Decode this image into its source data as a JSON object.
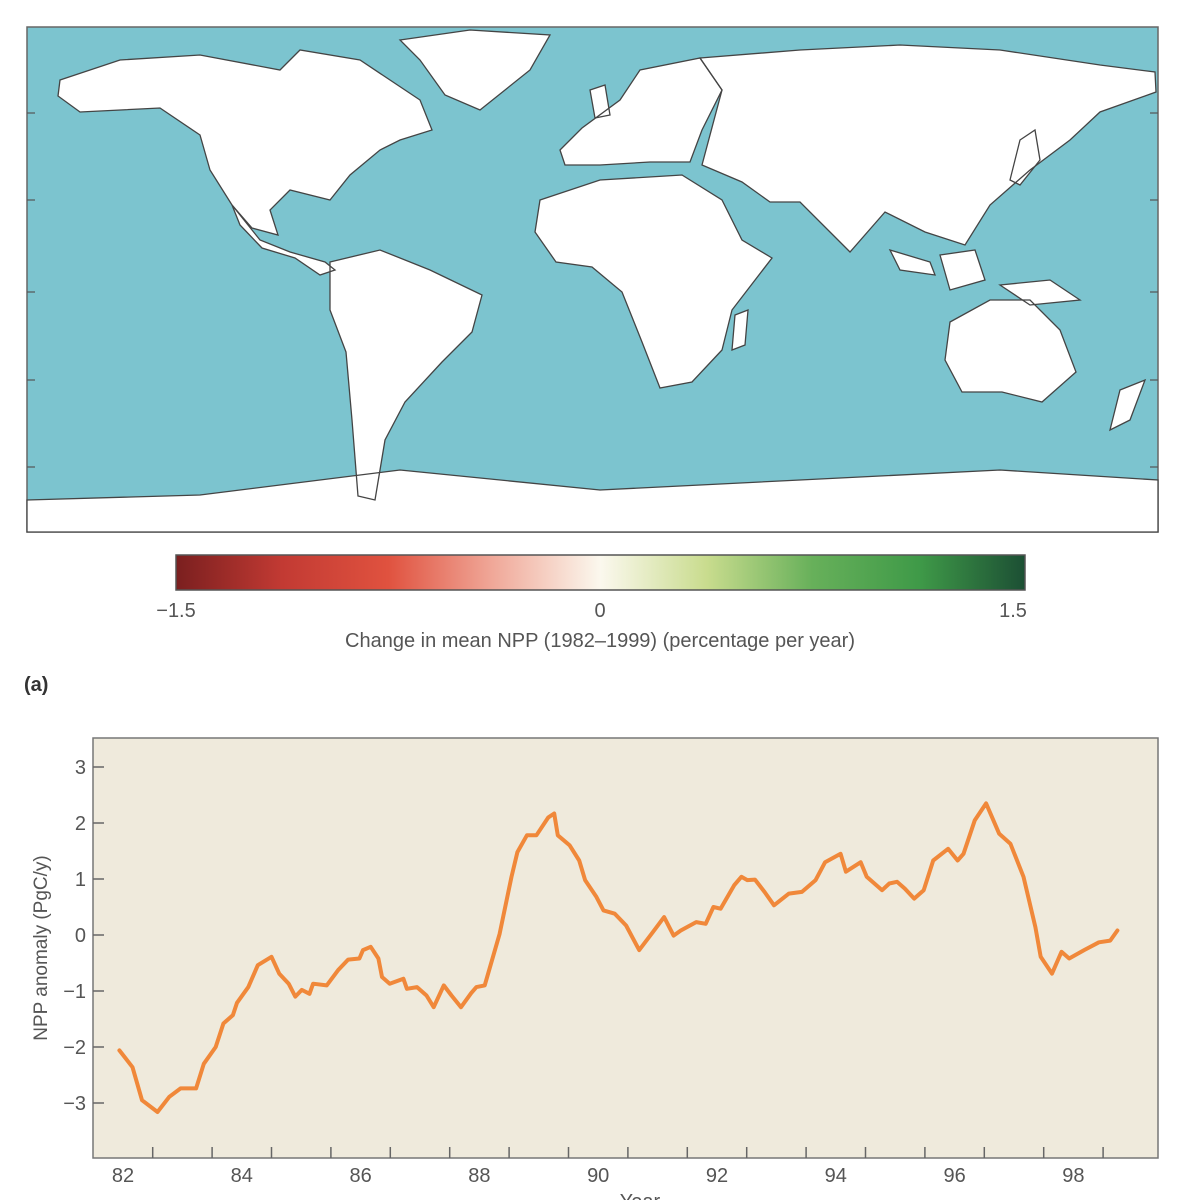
{
  "panel_label": "(a)",
  "chart_data": [
    {
      "type": "heatmap",
      "subtype": "world map",
      "colorbar": {
        "title": "Change in mean NPP (1982–1999) (percentage per year)",
        "min": -1.5,
        "max": 1.5,
        "tick_labels": [
          "−1.5",
          "0",
          "1.5"
        ],
        "colors": [
          "#7a1f1f",
          "#c23a33",
          "#e0523f",
          "#f0a99a",
          "#fbf8ee",
          "#c9dc8e",
          "#67b05a",
          "#3f9a48",
          "#1c4f34"
        ]
      },
      "colors": {
        "ocean": "#7cc4cf",
        "land": "#ffffff",
        "coastline": "#444444"
      }
    },
    {
      "type": "line",
      "xlabel": "Year",
      "ylabel": "NPP anomaly (PgC/y)",
      "xlim": [
        81.5,
        99.5
      ],
      "ylim": [
        -4,
        3.5
      ],
      "x_tick_labels": [
        "82",
        "84",
        "86",
        "88",
        "90",
        "92",
        "94",
        "96",
        "98"
      ],
      "x_ticks": [
        82,
        84,
        86,
        88,
        90,
        92,
        94,
        96,
        98
      ],
      "y_tick_labels": [
        "3",
        "2",
        "1",
        "0",
        "−1",
        "−2",
        "−3"
      ],
      "y_ticks": [
        3,
        2,
        1,
        0,
        -1,
        -2,
        -3
      ],
      "grid": false,
      "background": "#efeadc",
      "line_color": "#f0883a",
      "series": [
        {
          "x": [
            81.94,
            82.16,
            82.32,
            82.58,
            82.78,
            82.97,
            83.23,
            83.36,
            83.56,
            83.69,
            83.85,
            83.92,
            84.11,
            84.27,
            84.5,
            84.63,
            84.79,
            84.9,
            85.01,
            85.14,
            85.2,
            85.43,
            85.62,
            85.79,
            85.98,
            86.04,
            86.17,
            86.3,
            86.36,
            86.49,
            86.72,
            86.78,
            86.95,
            87.11,
            87.23,
            87.4,
            87.53,
            87.69,
            87.86,
            87.95,
            88.09,
            88.34,
            88.54,
            88.64,
            88.8,
            88.96,
            89.16,
            89.26,
            89.32,
            89.52,
            89.68,
            89.78,
            89.97,
            90.09,
            90.28,
            90.47,
            90.69,
            90.92,
            91.11,
            91.27,
            91.39,
            91.65,
            91.81,
            91.94,
            92.06,
            92.29,
            92.41,
            92.51,
            92.64,
            92.8,
            92.96,
            93.21,
            93.43,
            93.66,
            93.82,
            94.08,
            94.17,
            94.42,
            94.52,
            94.78,
            94.9,
            95.03,
            95.16,
            95.32,
            95.48,
            95.64,
            95.89,
            96.05,
            96.15,
            96.34,
            96.53,
            96.75,
            96.94,
            97.16,
            97.36,
            97.45,
            97.64,
            97.8,
            97.93,
            98.18,
            98.43,
            98.62,
            98.74
          ],
          "y": [
            -2.06,
            -2.36,
            -2.95,
            -3.16,
            -2.89,
            -2.74,
            -2.74,
            -2.3,
            -2.0,
            -1.58,
            -1.43,
            -1.21,
            -0.93,
            -0.54,
            -0.39,
            -0.69,
            -0.87,
            -1.1,
            -0.98,
            -1.05,
            -0.87,
            -0.9,
            -0.63,
            -0.44,
            -0.42,
            -0.27,
            -0.21,
            -0.42,
            -0.75,
            -0.87,
            -0.78,
            -0.96,
            -0.93,
            -1.08,
            -1.29,
            -0.9,
            -1.08,
            -1.29,
            -1.04,
            -0.93,
            -0.9,
            0.02,
            1.04,
            1.48,
            1.78,
            1.78,
            2.1,
            2.17,
            1.78,
            1.6,
            1.33,
            0.98,
            0.68,
            0.44,
            0.38,
            0.17,
            -0.27,
            0.05,
            0.32,
            -0.01,
            0.08,
            0.23,
            0.2,
            0.5,
            0.47,
            0.89,
            1.04,
            0.98,
            0.99,
            0.77,
            0.53,
            0.74,
            0.77,
            0.98,
            1.3,
            1.45,
            1.13,
            1.3,
            1.04,
            0.8,
            0.92,
            0.95,
            0.83,
            0.65,
            0.8,
            1.33,
            1.54,
            1.33,
            1.45,
            2.05,
            2.35,
            1.81,
            1.63,
            1.04,
            0.14,
            -0.39,
            -0.69,
            -0.3,
            -0.42,
            -0.27,
            -0.13,
            -0.1,
            0.08
          ]
        }
      ]
    }
  ]
}
